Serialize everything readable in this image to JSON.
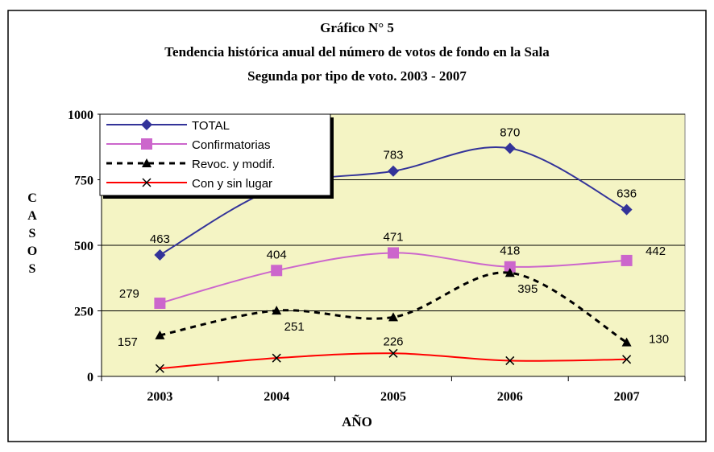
{
  "chart_data": {
    "type": "line",
    "title": "Gráfico N° 5",
    "subtitle": [
      "Tendencia histórica anual del número de votos de fondo en la Sala",
      "Segunda por tipo de voto. 2003 - 2007"
    ],
    "x_label": "AÑO",
    "y_label": "CASOS",
    "categories": [
      "2003",
      "2004",
      "2005",
      "2006",
      "2007"
    ],
    "series": [
      {
        "name": "TOTAL",
        "color": "#333399",
        "marker": "diamond",
        "dashed": false,
        "labels": true,
        "values": [
          463,
          720,
          783,
          870,
          636
        ]
      },
      {
        "name": "Confirmatorias",
        "color": "#cc66cc",
        "marker": "square",
        "dashed": false,
        "labels": true,
        "values": [
          279,
          404,
          471,
          418,
          442
        ]
      },
      {
        "name": "Revoc. y modif.",
        "color": "#000000",
        "marker": "triangle",
        "dashed": true,
        "labels": true,
        "values": [
          157,
          251,
          226,
          395,
          130
        ]
      },
      {
        "name": "Con y sin lugar",
        "color": "#ff0000",
        "marker": "x",
        "dashed": false,
        "labels": false,
        "values": [
          30,
          70,
          88,
          60,
          65
        ]
      }
    ],
    "ylim": [
      0,
      1000
    ],
    "yticks": [
      0,
      250,
      500,
      750,
      1000
    ],
    "grid": true,
    "legend": "upper left"
  }
}
